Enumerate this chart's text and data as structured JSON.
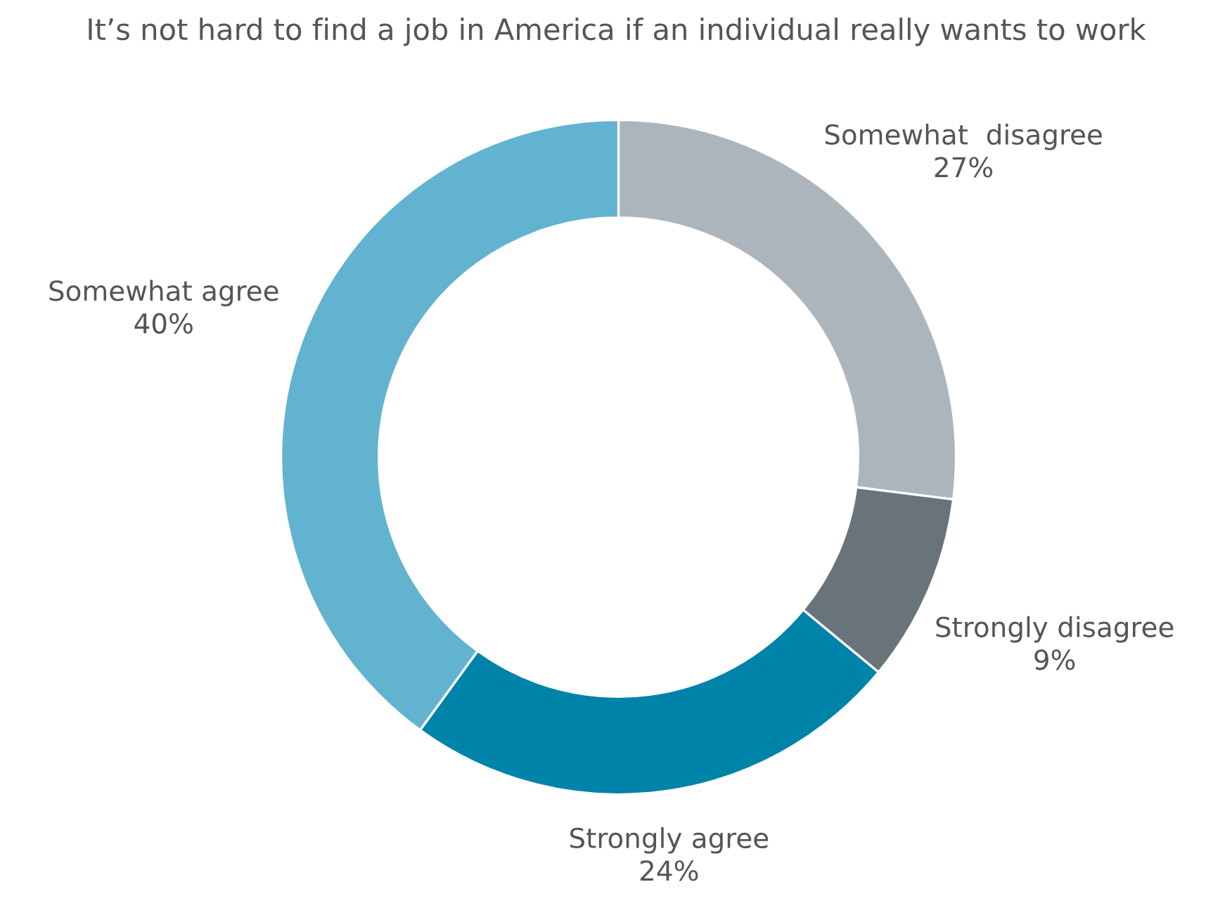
{
  "chart_data": {
    "type": "donut",
    "title": "It’s not hard to find a job in America if an individual really wants to work",
    "categories": [
      "Somewhat  disagree",
      "Strongly disagree",
      "Strongly agree",
      "Somewhat agree"
    ],
    "values": [
      27,
      9,
      24,
      40
    ],
    "colors": [
      "#adb5bc",
      "#69747a",
      "#0083a9",
      "#62b3d0"
    ],
    "value_labels": [
      "27%",
      "9%",
      "24%",
      "40%"
    ],
    "legend": false
  }
}
